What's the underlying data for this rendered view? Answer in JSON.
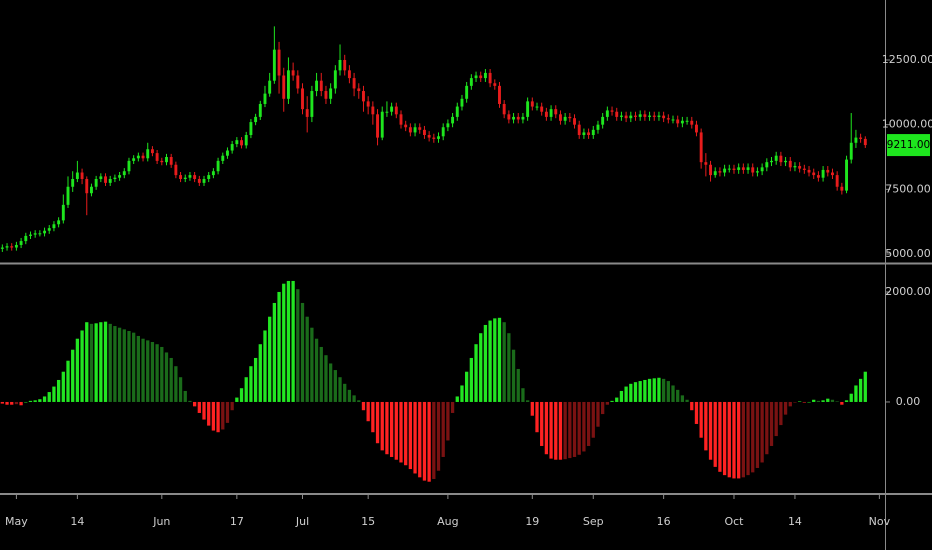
{
  "chart_data": [
    {
      "type": "candlestick",
      "open": [
        5200,
        5250,
        5300,
        5250,
        5350,
        5500,
        5700,
        5750,
        5800,
        5800,
        5900,
        6000,
        6150,
        6300,
        6900,
        7600,
        7900,
        8150,
        7900,
        7350,
        7600,
        7900,
        8000,
        7750,
        7900,
        7950,
        8050,
        8200,
        8600,
        8700,
        8800,
        8700,
        9050,
        8900,
        8600,
        8550,
        8750,
        8450,
        8050,
        7900,
        7950,
        8050,
        7900,
        7750,
        7900,
        8050,
        8200,
        8600,
        8800,
        9000,
        9250,
        9400,
        9200,
        9600,
        10100,
        10300,
        10800,
        11200,
        11700,
        12900,
        11900,
        11000,
        12100,
        11900,
        11400,
        10600,
        10300,
        11300,
        11700,
        11300,
        11000,
        11400,
        12100,
        12500,
        12100,
        11800,
        11400,
        11300,
        10900,
        10700,
        10400,
        9500,
        10500,
        10500,
        10700,
        10400,
        10000,
        9900,
        9700,
        9900,
        9800,
        9600,
        9500,
        9450,
        9550,
        9900,
        10050,
        10300,
        10700,
        11000,
        11500,
        11800,
        11900,
        11800,
        12000,
        11600,
        11500,
        10800,
        10400,
        10200,
        10300,
        10200,
        10300,
        10900,
        10700,
        10700,
        10500,
        10300,
        10600,
        10400,
        10150,
        10300,
        10250,
        10000,
        9600,
        9700,
        9600,
        9800,
        10000,
        10300,
        10550,
        10500,
        10300,
        10350,
        10250,
        10350,
        10300,
        10400,
        10300,
        10350,
        10300,
        10350,
        10250,
        10200,
        10200,
        10050,
        10150,
        10150,
        10000,
        9700,
        8550,
        8450,
        8050,
        8200,
        8150,
        8300,
        8300,
        8250,
        8350,
        8250,
        8350,
        8150,
        8200,
        8350,
        8550,
        8600,
        8800,
        8550,
        8600,
        8350,
        8400,
        8300,
        8250,
        8150,
        8050,
        7950,
        8250,
        8150,
        8050,
        7600,
        7450,
        8650,
        9300,
        9500,
        9450
      ],
      "high": [
        5370,
        5420,
        5420,
        5470,
        5620,
        5820,
        5870,
        5920,
        5920,
        6020,
        6120,
        6270,
        6420,
        7300,
        8000,
        8200,
        8600,
        8300,
        8000,
        7720,
        8020,
        8120,
        8120,
        8020,
        8070,
        8170,
        8320,
        8720,
        8820,
        8920,
        8920,
        9300,
        9170,
        9020,
        8720,
        8870,
        8870,
        8570,
        8170,
        8070,
        8170,
        8170,
        8020,
        8020,
        8170,
        8320,
        8720,
        8920,
        9120,
        9370,
        9520,
        9520,
        9720,
        10220,
        10420,
        10920,
        11500,
        12000,
        13800,
        13200,
        12200,
        12600,
        12400,
        12100,
        11600,
        11100,
        11500,
        12000,
        12000,
        11500,
        11600,
        12300,
        13100,
        12700,
        12300,
        12000,
        11600,
        11500,
        11100,
        10900,
        10600,
        10700,
        10900,
        10850,
        10850,
        10550,
        10150,
        10050,
        10050,
        10050,
        9950,
        9750,
        9650,
        9700,
        10050,
        10200,
        10450,
        10850,
        11150,
        11650,
        11950,
        12050,
        12050,
        12150,
        12150,
        11750,
        11650,
        10950,
        10550,
        10450,
        10450,
        10450,
        11050,
        11050,
        10850,
        10850,
        10650,
        10750,
        10750,
        10550,
        10450,
        10450,
        10400,
        10150,
        9850,
        9850,
        9950,
        10150,
        10450,
        10700,
        10700,
        10650,
        10500,
        10500,
        10500,
        10500,
        10550,
        10550,
        10500,
        10500,
        10500,
        10500,
        10400,
        10350,
        10350,
        10300,
        10300,
        10300,
        10150,
        9850,
        8900,
        8600,
        8350,
        8350,
        8450,
        8450,
        8450,
        8500,
        8500,
        8500,
        8500,
        8350,
        8500,
        8700,
        8750,
        8950,
        8950,
        8750,
        8750,
        8550,
        8550,
        8450,
        8400,
        8300,
        8200,
        8400,
        8400,
        8300,
        8200,
        7750,
        8800,
        10450,
        9800,
        9650,
        9550
      ],
      "low": [
        5080,
        5130,
        5130,
        5130,
        5230,
        5380,
        5580,
        5630,
        5680,
        5680,
        5780,
        5880,
        6030,
        6180,
        6780,
        7400,
        7780,
        7700,
        6500,
        7230,
        7480,
        7780,
        7630,
        7630,
        7780,
        7830,
        7930,
        8080,
        8480,
        8580,
        8580,
        8580,
        8780,
        8480,
        8430,
        8430,
        8330,
        7930,
        7780,
        7780,
        7830,
        7780,
        7630,
        7630,
        7780,
        7930,
        8080,
        8480,
        8680,
        8880,
        9130,
        9080,
        9080,
        9480,
        9980,
        10180,
        10680,
        11080,
        11580,
        11200,
        10500,
        10800,
        11700,
        11200,
        10400,
        9700,
        10100,
        11100,
        11100,
        10800,
        10800,
        11200,
        11900,
        11900,
        11600,
        11100,
        11000,
        10500,
        10400,
        10000,
        9200,
        9400,
        10300,
        10350,
        10250,
        9850,
        9750,
        9550,
        9550,
        9650,
        9450,
        9350,
        9300,
        9300,
        9400,
        9750,
        9900,
        10150,
        10550,
        10850,
        11350,
        11650,
        11650,
        11650,
        11450,
        11350,
        10650,
        10250,
        10050,
        10050,
        10050,
        10050,
        10150,
        10550,
        10550,
        10350,
        10150,
        10150,
        10250,
        10000,
        10000,
        10100,
        9850,
        9450,
        9450,
        9450,
        9450,
        9650,
        9850,
        10150,
        10350,
        10150,
        10150,
        10100,
        10100,
        10150,
        10150,
        10150,
        10150,
        10150,
        10150,
        10100,
        10050,
        10050,
        9900,
        9900,
        10000,
        9850,
        9550,
        8300,
        8000,
        7800,
        7950,
        8000,
        8000,
        8150,
        8100,
        8100,
        8100,
        8100,
        8000,
        8000,
        8050,
        8200,
        8400,
        8450,
        8400,
        8400,
        8200,
        8200,
        8150,
        8100,
        8000,
        7900,
        7800,
        7800,
        8000,
        7900,
        7450,
        7300,
        7350,
        8500,
        9100,
        9300,
        9100
      ],
      "close": [
        5250,
        5300,
        5250,
        5350,
        5500,
        5700,
        5750,
        5800,
        5800,
        5900,
        6000,
        6150,
        6300,
        6900,
        7600,
        7900,
        8150,
        7900,
        7350,
        7600,
        7900,
        8000,
        7750,
        7900,
        7950,
        8050,
        8200,
        8600,
        8700,
        8800,
        8700,
        9050,
        8900,
        8600,
        8550,
        8750,
        8450,
        8050,
        7900,
        7950,
        8050,
        7900,
        7750,
        7900,
        8050,
        8200,
        8600,
        8800,
        9000,
        9250,
        9400,
        9200,
        9600,
        10100,
        10300,
        10800,
        11200,
        11700,
        12900,
        11900,
        11000,
        12100,
        11900,
        11400,
        10600,
        10300,
        11300,
        11700,
        11300,
        11000,
        11400,
        12100,
        12500,
        12100,
        11800,
        11400,
        11300,
        10900,
        10700,
        10400,
        9500,
        10500,
        10500,
        10700,
        10400,
        10000,
        9900,
        9700,
        9900,
        9800,
        9600,
        9500,
        9450,
        9550,
        9900,
        10050,
        10300,
        10700,
        11000,
        11500,
        11800,
        11900,
        11800,
        12000,
        11600,
        11500,
        10800,
        10400,
        10200,
        10300,
        10200,
        10300,
        10900,
        10700,
        10700,
        10500,
        10300,
        10600,
        10400,
        10150,
        10300,
        10250,
        10000,
        9600,
        9700,
        9600,
        9800,
        10000,
        10300,
        10550,
        10500,
        10300,
        10350,
        10250,
        10350,
        10300,
        10400,
        10300,
        10350,
        10300,
        10350,
        10250,
        10200,
        10200,
        10050,
        10150,
        10150,
        10000,
        9700,
        8550,
        8450,
        8050,
        8200,
        8150,
        8300,
        8300,
        8250,
        8350,
        8250,
        8350,
        8150,
        8200,
        8350,
        8550,
        8600,
        8800,
        8550,
        8600,
        8350,
        8400,
        8300,
        8250,
        8150,
        8050,
        7950,
        8250,
        8150,
        8050,
        7600,
        7450,
        8650,
        9300,
        9500,
        9450,
        9211
      ],
      "up_color": "#1ee61e",
      "down_color": "#e81c1c",
      "last_price": {
        "value": 9211,
        "label": "9211.00"
      },
      "last_price_color": "#1ee61e",
      "xlim": [
        -0.5,
        188.2
      ],
      "ylim": [
        4691,
        14819
      ],
      "yticks": [
        {
          "value": 5000,
          "label": "5000.00"
        },
        {
          "value": 7500,
          "label": "7500.00"
        },
        {
          "value": 10000,
          "label": "10000.00"
        },
        {
          "value": 12500,
          "label": "12500.00"
        }
      ]
    },
    {
      "type": "histogram",
      "values": [
        -30,
        -50,
        -50,
        -40,
        -60,
        0,
        20,
        30,
        50,
        100,
        180,
        280,
        400,
        550,
        750,
        950,
        1150,
        1300,
        1450,
        1420,
        1430,
        1450,
        1460,
        1420,
        1380,
        1350,
        1320,
        1290,
        1260,
        1200,
        1150,
        1120,
        1090,
        1050,
        1000,
        900,
        800,
        650,
        450,
        200,
        20,
        -80,
        -200,
        -320,
        -430,
        -520,
        -550,
        -500,
        -380,
        -150,
        80,
        250,
        450,
        650,
        800,
        1050,
        1300,
        1550,
        1800,
        2000,
        2150,
        2200,
        2200,
        2050,
        1800,
        1550,
        1350,
        1150,
        1000,
        850,
        700,
        580,
        450,
        330,
        220,
        120,
        30,
        -150,
        -350,
        -550,
        -750,
        -880,
        -950,
        -1000,
        -1050,
        -1100,
        -1150,
        -1220,
        -1300,
        -1370,
        -1430,
        -1450,
        -1400,
        -1250,
        -1000,
        -700,
        -200,
        100,
        300,
        550,
        800,
        1050,
        1250,
        1400,
        1480,
        1520,
        1530,
        1450,
        1250,
        950,
        600,
        250,
        30,
        -250,
        -550,
        -800,
        -950,
        -1030,
        -1050,
        -1050,
        -1040,
        -1020,
        -1000,
        -960,
        -900,
        -800,
        -650,
        -450,
        -220,
        -50,
        20,
        80,
        200,
        280,
        330,
        360,
        380,
        400,
        420,
        430,
        440,
        420,
        380,
        300,
        220,
        120,
        40,
        -150,
        -400,
        -650,
        -880,
        -1050,
        -1180,
        -1270,
        -1330,
        -1370,
        -1390,
        -1390,
        -1370,
        -1330,
        -1280,
        -1200,
        -1100,
        -950,
        -800,
        -620,
        -420,
        -230,
        -80,
        -10,
        10,
        -10,
        0,
        40,
        20,
        30,
        60,
        40,
        10,
        -50,
        30,
        150,
        300,
        420,
        550
      ],
      "colors": [
        "#22e622",
        "#1a6b1a",
        "#ff2222",
        "#7a1212"
      ],
      "xlim": [
        -0.5,
        188.2
      ],
      "ylim": [
        -1655,
        2490
      ],
      "yticks": [
        {
          "value": 0,
          "label": "0.00"
        },
        {
          "value": 2000,
          "label": "2000.00"
        }
      ],
      "xticks": [
        {
          "value": 3,
          "label": "May"
        },
        {
          "value": 16,
          "label": "14"
        },
        {
          "value": 34,
          "label": "Jun"
        },
        {
          "value": 50,
          "label": "17"
        },
        {
          "value": 64,
          "label": "Jul"
        },
        {
          "value": 78,
          "label": "15"
        },
        {
          "value": 95,
          "label": "Aug"
        },
        {
          "value": 113,
          "label": "19"
        },
        {
          "value": 126,
          "label": "Sep"
        },
        {
          "value": 141,
          "label": "16"
        },
        {
          "value": 156,
          "label": "Oct"
        },
        {
          "value": 169,
          "label": "14"
        },
        {
          "value": 187,
          "label": "Nov"
        }
      ]
    }
  ]
}
